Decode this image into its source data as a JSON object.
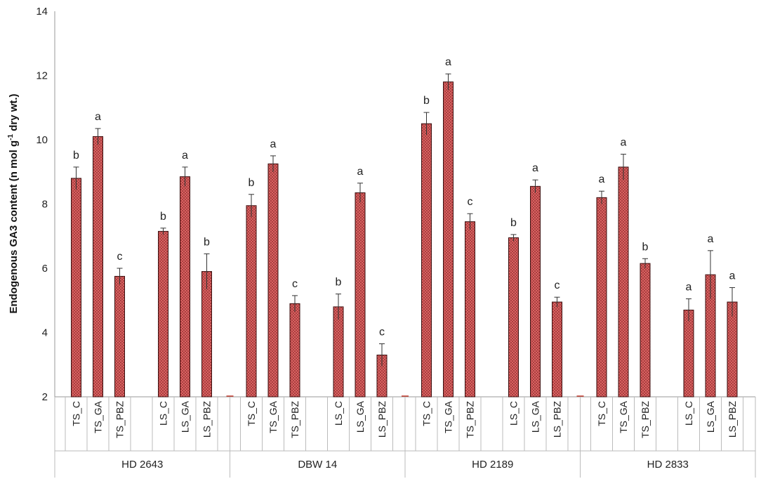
{
  "chart_data": {
    "type": "bar",
    "ylabel": {
      "main": "Endogenous GA3 content (n mol g",
      "superscript": "-1",
      "tail": " dry wt.)"
    },
    "ylim": [
      2,
      14
    ],
    "yticks": [
      "2",
      "4",
      "6",
      "8",
      "10",
      "12",
      "14"
    ],
    "grid": false,
    "bar_color": "#e06666",
    "groups": [
      {
        "name": "HD 2643",
        "bars": [
          {
            "label": "TS_C",
            "value": 8.8,
            "error": 0.35,
            "sig": "b"
          },
          {
            "label": "TS_GA",
            "value": 10.1,
            "error": 0.25,
            "sig": "a"
          },
          {
            "label": "TS_PBZ",
            "value": 5.75,
            "error": 0.25,
            "sig": "c"
          },
          {
            "label": "LS_C",
            "value": 7.15,
            "error": 0.1,
            "sig": "b"
          },
          {
            "label": "LS_GA",
            "value": 8.85,
            "error": 0.3,
            "sig": "a"
          },
          {
            "label": "LS_PBZ",
            "value": 5.9,
            "error": 0.55,
            "sig": "b"
          }
        ]
      },
      {
        "name": "DBW 14",
        "bars": [
          {
            "label": "TS_C",
            "value": 7.95,
            "error": 0.35,
            "sig": "b"
          },
          {
            "label": "TS_GA",
            "value": 9.25,
            "error": 0.25,
            "sig": "a"
          },
          {
            "label": "TS_PBZ",
            "value": 4.9,
            "error": 0.25,
            "sig": "c"
          },
          {
            "label": "LS_C",
            "value": 4.8,
            "error": 0.4,
            "sig": "b"
          },
          {
            "label": "LS_GA",
            "value": 8.35,
            "error": 0.3,
            "sig": "a"
          },
          {
            "label": "LS_PBZ",
            "value": 3.3,
            "error": 0.35,
            "sig": "c"
          }
        ]
      },
      {
        "name": "HD 2189",
        "bars": [
          {
            "label": "TS_C",
            "value": 10.5,
            "error": 0.35,
            "sig": "b"
          },
          {
            "label": "TS_GA",
            "value": 11.8,
            "error": 0.25,
            "sig": "a"
          },
          {
            "label": "TS_PBZ",
            "value": 7.45,
            "error": 0.25,
            "sig": "c"
          },
          {
            "label": "LS_C",
            "value": 6.95,
            "error": 0.1,
            "sig": "b"
          },
          {
            "label": "LS_GA",
            "value": 8.55,
            "error": 0.2,
            "sig": "a"
          },
          {
            "label": "LS_PBZ",
            "value": 4.95,
            "error": 0.15,
            "sig": "c"
          }
        ]
      },
      {
        "name": "HD 2833",
        "bars": [
          {
            "label": "TS_C",
            "value": 8.2,
            "error": 0.2,
            "sig": "a"
          },
          {
            "label": "TS_GA",
            "value": 9.15,
            "error": 0.4,
            "sig": "a"
          },
          {
            "label": "TS_PBZ",
            "value": 6.15,
            "error": 0.15,
            "sig": "b"
          },
          {
            "label": "LS_C",
            "value": 4.7,
            "error": 0.35,
            "sig": "a"
          },
          {
            "label": "LS_GA",
            "value": 5.8,
            "error": 0.75,
            "sig": "a"
          },
          {
            "label": "LS_PBZ",
            "value": 4.95,
            "error": 0.45,
            "sig": "a"
          }
        ]
      }
    ]
  }
}
